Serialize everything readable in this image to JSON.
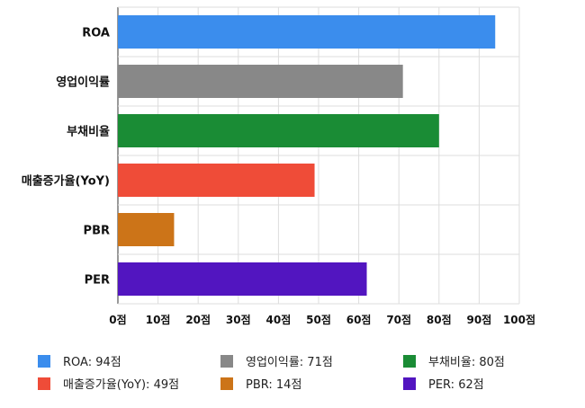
{
  "chart_data": {
    "type": "bar",
    "orientation": "horizontal",
    "categories": [
      "ROA",
      "영업이익률",
      "부채비율",
      "매출증가율(YoY)",
      "PBR",
      "PER"
    ],
    "values": [
      94,
      71,
      80,
      49,
      14,
      62
    ],
    "colors": [
      "#3b8ded",
      "#888888",
      "#1a8c35",
      "#ef4c38",
      "#cc7418",
      "#5215c0"
    ],
    "xlim": [
      0,
      100
    ],
    "xticks": [
      0,
      10,
      20,
      30,
      40,
      50,
      60,
      70,
      80,
      90,
      100
    ],
    "tick_suffix": "점",
    "grid": true,
    "legend_position": "bottom",
    "legend": [
      {
        "label": "ROA: 94점",
        "color": "#3b8ded"
      },
      {
        "label": "영업이익률: 71점",
        "color": "#888888"
      },
      {
        "label": "부채비율: 80점",
        "color": "#1a8c35"
      },
      {
        "label": "매출증가율(YoY): 49점",
        "color": "#ef4c38"
      },
      {
        "label": "PBR: 14점",
        "color": "#cc7418"
      },
      {
        "label": "PER: 62점",
        "color": "#5215c0"
      }
    ]
  }
}
